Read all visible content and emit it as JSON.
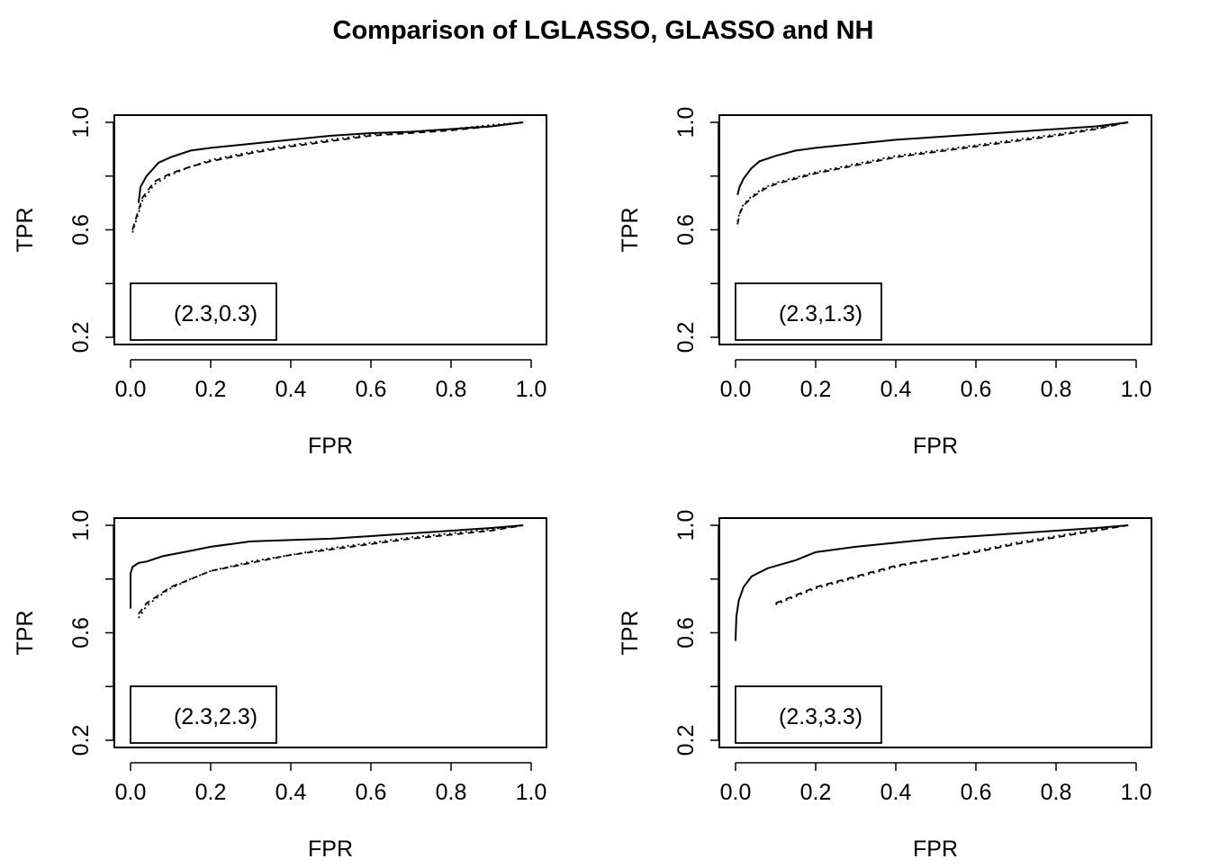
{
  "title": "Comparison of LGLASSO, GLASSO  and NH",
  "chart_data": [
    {
      "type": "line",
      "xlabel": "FPR",
      "ylabel": "TPR",
      "xlim": [
        0,
        1
      ],
      "ylim": [
        0.2,
        1.0
      ],
      "xticks": [
        "0.0",
        "0.2",
        "0.4",
        "0.6",
        "0.8",
        "1.0"
      ],
      "yticks": [
        "0.2",
        "0.6",
        "1.0"
      ],
      "legend": {
        "text": "(2.3,0.3)",
        "placement": "bottom-left"
      },
      "series": [
        {
          "style": "solid",
          "x": [
            0.02,
            0.025,
            0.04,
            0.07,
            0.1,
            0.15,
            0.2,
            0.3,
            0.4,
            0.5,
            0.6,
            0.7,
            0.8,
            0.9,
            0.98
          ],
          "y": [
            0.7,
            0.76,
            0.8,
            0.85,
            0.87,
            0.895,
            0.905,
            0.92,
            0.935,
            0.95,
            0.96,
            0.965,
            0.975,
            0.985,
            1.0
          ]
        },
        {
          "style": "dashed",
          "x": [
            0.005,
            0.015,
            0.03,
            0.06,
            0.1,
            0.15,
            0.2,
            0.3,
            0.4,
            0.5,
            0.6,
            0.7,
            0.8,
            0.9,
            0.98
          ],
          "y": [
            0.6,
            0.65,
            0.72,
            0.78,
            0.81,
            0.835,
            0.855,
            0.885,
            0.91,
            0.93,
            0.95,
            0.96,
            0.97,
            0.985,
            1.0
          ]
        },
        {
          "style": "dotted",
          "x": [
            0.005,
            0.015,
            0.03,
            0.06,
            0.1,
            0.15,
            0.2,
            0.3,
            0.4,
            0.5,
            0.6,
            0.7,
            0.8,
            0.9,
            0.98
          ],
          "y": [
            0.59,
            0.64,
            0.71,
            0.77,
            0.805,
            0.835,
            0.86,
            0.89,
            0.915,
            0.935,
            0.955,
            0.965,
            0.975,
            0.99,
            1.0
          ]
        }
      ]
    },
    {
      "type": "line",
      "xlabel": "FPR",
      "ylabel": "TPR",
      "xlim": [
        0,
        1
      ],
      "ylim": [
        0.2,
        1.0
      ],
      "xticks": [
        "0.0",
        "0.2",
        "0.4",
        "0.6",
        "0.8",
        "1.0"
      ],
      "yticks": [
        "0.2",
        "0.6",
        "1.0"
      ],
      "legend": {
        "text": "(2.3,1.3)",
        "placement": "bottom-left"
      },
      "series": [
        {
          "style": "solid",
          "x": [
            0.005,
            0.01,
            0.02,
            0.04,
            0.06,
            0.1,
            0.15,
            0.2,
            0.3,
            0.4,
            0.5,
            0.6,
            0.7,
            0.8,
            0.9,
            0.98
          ],
          "y": [
            0.73,
            0.76,
            0.79,
            0.83,
            0.855,
            0.875,
            0.895,
            0.905,
            0.92,
            0.935,
            0.945,
            0.955,
            0.965,
            0.975,
            0.985,
            1.0
          ]
        },
        {
          "style": "dashed",
          "x": [
            0.005,
            0.01,
            0.02,
            0.04,
            0.07,
            0.1,
            0.15,
            0.2,
            0.3,
            0.4,
            0.5,
            0.6,
            0.7,
            0.8,
            0.9,
            0.98
          ],
          "y": [
            0.62,
            0.66,
            0.69,
            0.72,
            0.75,
            0.77,
            0.79,
            0.81,
            0.84,
            0.87,
            0.89,
            0.91,
            0.93,
            0.95,
            0.975,
            1.0
          ]
        },
        {
          "style": "dotted",
          "x": [
            0.005,
            0.01,
            0.02,
            0.04,
            0.07,
            0.1,
            0.15,
            0.2,
            0.3,
            0.4,
            0.5,
            0.6,
            0.7,
            0.8,
            0.9,
            0.98
          ],
          "y": [
            0.63,
            0.665,
            0.695,
            0.725,
            0.755,
            0.775,
            0.795,
            0.815,
            0.845,
            0.875,
            0.895,
            0.915,
            0.935,
            0.955,
            0.978,
            1.0
          ]
        }
      ]
    },
    {
      "type": "line",
      "xlabel": "FPR",
      "ylabel": "TPR",
      "xlim": [
        0,
        1
      ],
      "ylim": [
        0.2,
        1.0
      ],
      "xticks": [
        "0.0",
        "0.2",
        "0.4",
        "0.6",
        "0.8",
        "1.0"
      ],
      "yticks": [
        "0.2",
        "0.6",
        "1.0"
      ],
      "legend": {
        "text": "(2.3,2.3)",
        "placement": "bottom-left"
      },
      "series": [
        {
          "style": "solid",
          "x": [
            0.0,
            0.0,
            0.005,
            0.02,
            0.04,
            0.08,
            0.15,
            0.2,
            0.3,
            0.4,
            0.5,
            0.6,
            0.7,
            0.8,
            0.9,
            0.98
          ],
          "y": [
            0.69,
            0.82,
            0.845,
            0.86,
            0.865,
            0.885,
            0.905,
            0.92,
            0.94,
            0.945,
            0.95,
            0.96,
            0.97,
            0.98,
            0.99,
            1.0
          ]
        },
        {
          "style": "dashed",
          "x": [
            0.02,
            0.04,
            0.07,
            0.1,
            0.15,
            0.2,
            0.3,
            0.4,
            0.5,
            0.6,
            0.7,
            0.8,
            0.9,
            0.98
          ],
          "y": [
            0.67,
            0.71,
            0.74,
            0.77,
            0.8,
            0.83,
            0.86,
            0.89,
            0.91,
            0.93,
            0.95,
            0.965,
            0.98,
            1.0
          ]
        },
        {
          "style": "dotted",
          "x": [
            0.02,
            0.04,
            0.07,
            0.1,
            0.15,
            0.2,
            0.3,
            0.4,
            0.5,
            0.6,
            0.7,
            0.8,
            0.9,
            0.98
          ],
          "y": [
            0.655,
            0.7,
            0.735,
            0.765,
            0.8,
            0.83,
            0.865,
            0.89,
            0.915,
            0.935,
            0.955,
            0.97,
            0.985,
            1.0
          ]
        }
      ]
    },
    {
      "type": "line",
      "xlabel": "FPR",
      "ylabel": "TPR",
      "xlim": [
        0,
        1
      ],
      "ylim": [
        0.2,
        1.0
      ],
      "xticks": [
        "0.0",
        "0.2",
        "0.4",
        "0.6",
        "0.8",
        "1.0"
      ],
      "yticks": [
        "0.2",
        "0.6",
        "1.0"
      ],
      "legend": {
        "text": "(2.3,3.3)",
        "placement": "bottom-left"
      },
      "series": [
        {
          "style": "solid",
          "x": [
            0.0,
            0.002,
            0.008,
            0.02,
            0.04,
            0.08,
            0.15,
            0.2,
            0.3,
            0.4,
            0.5,
            0.6,
            0.7,
            0.8,
            0.9,
            0.98
          ],
          "y": [
            0.57,
            0.66,
            0.72,
            0.77,
            0.81,
            0.84,
            0.87,
            0.9,
            0.92,
            0.935,
            0.95,
            0.96,
            0.97,
            0.98,
            0.99,
            1.0
          ]
        },
        {
          "style": "dashed",
          "x": [
            0.1,
            0.15,
            0.2,
            0.3,
            0.4,
            0.5,
            0.6,
            0.7,
            0.8,
            0.9,
            0.98
          ],
          "y": [
            0.71,
            0.74,
            0.77,
            0.81,
            0.85,
            0.875,
            0.9,
            0.93,
            0.955,
            0.98,
            1.0
          ]
        },
        {
          "style": "dotted",
          "x": [
            0.1,
            0.15,
            0.2,
            0.3,
            0.4,
            0.5,
            0.6,
            0.7,
            0.8,
            0.9,
            0.98
          ],
          "y": [
            0.705,
            0.735,
            0.765,
            0.805,
            0.845,
            0.875,
            0.905,
            0.935,
            0.96,
            0.985,
            1.0
          ]
        }
      ]
    }
  ]
}
